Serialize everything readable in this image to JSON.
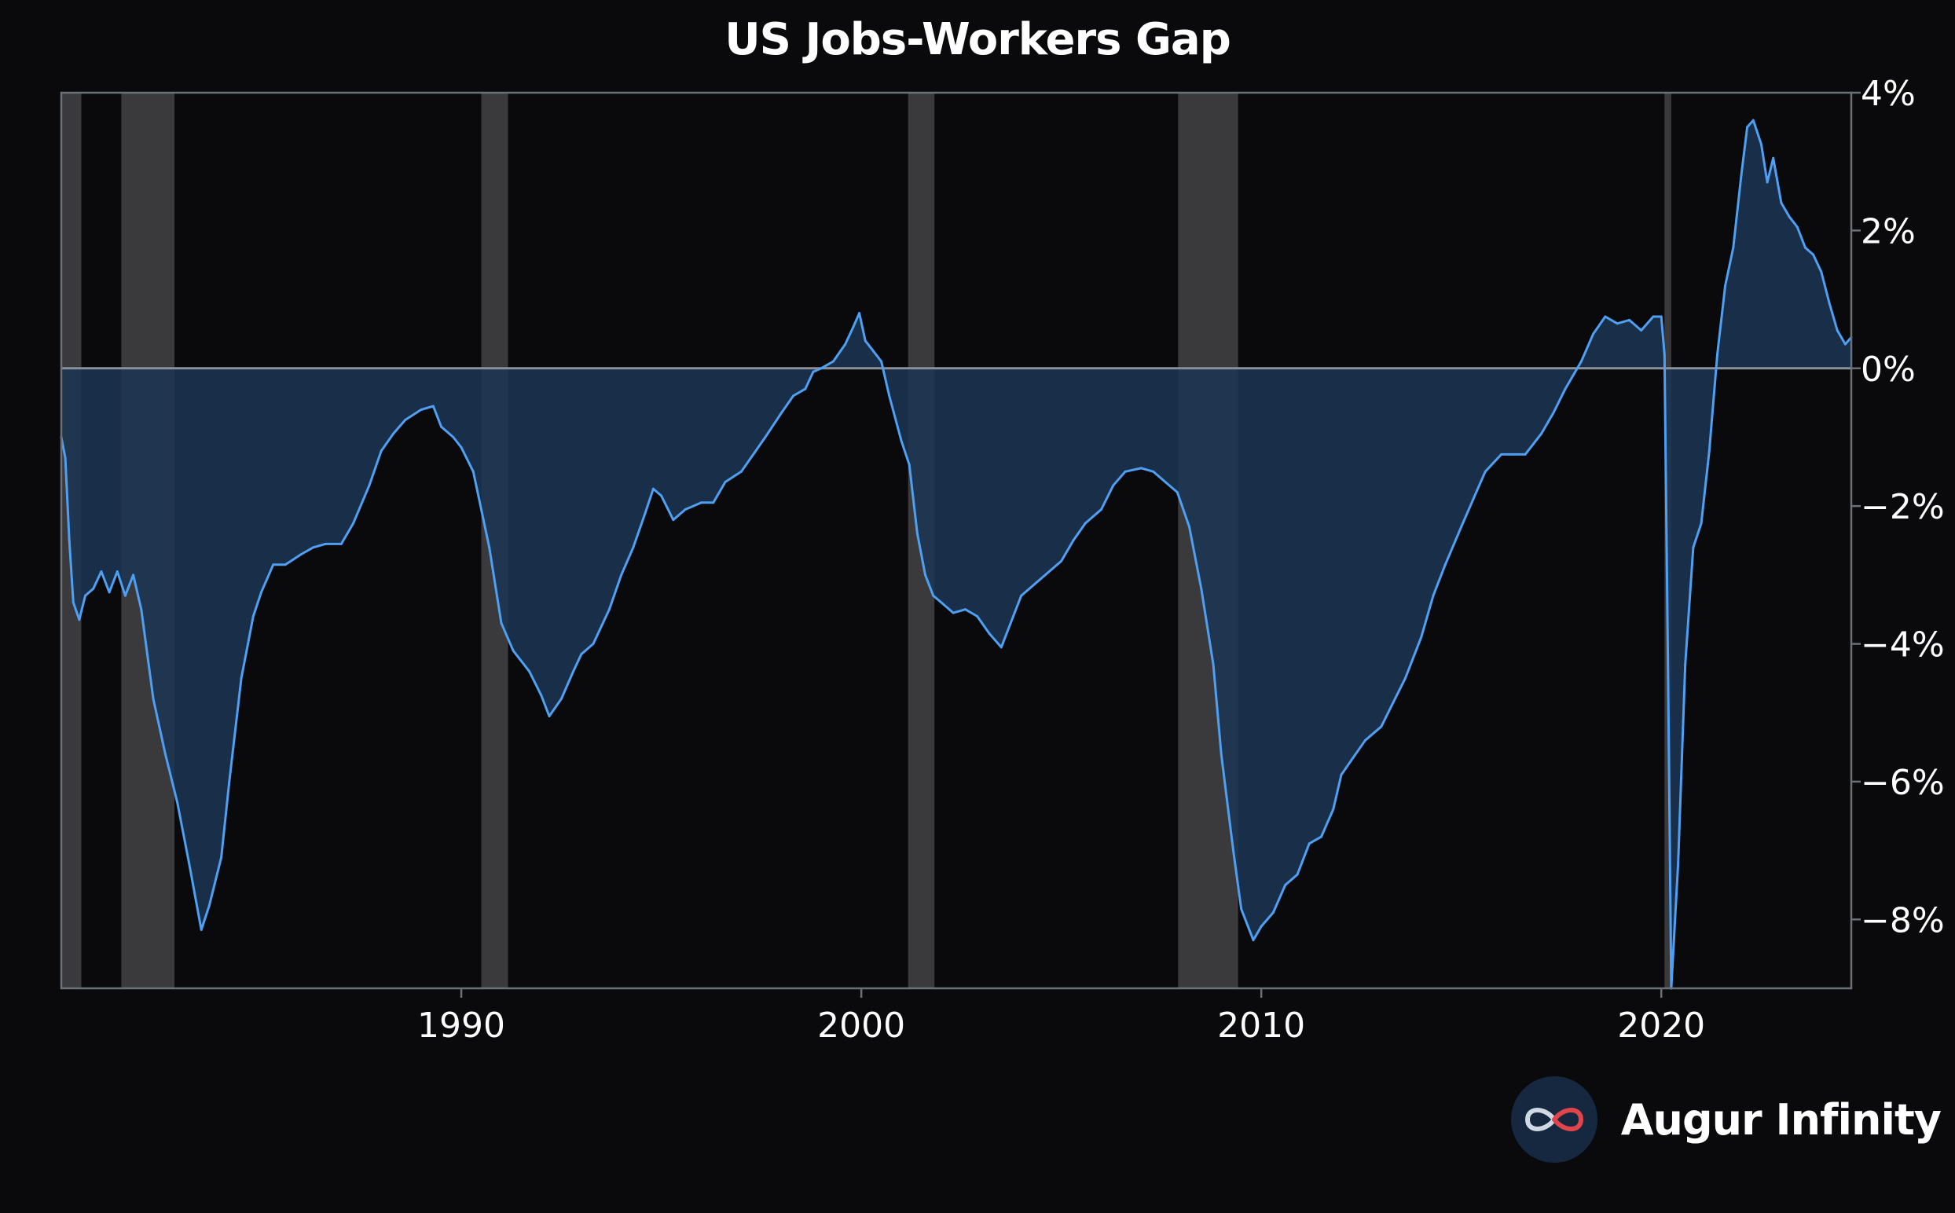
{
  "chart_data": {
    "type": "area",
    "title": "US Jobs-Workers Gap",
    "xlabel": "",
    "ylabel": "",
    "xlim": [
      1980.0,
      2024.75
    ],
    "ylim": [
      -9,
      4
    ],
    "y_ticks": [
      4,
      2,
      0,
      -2,
      -4,
      -6,
      -8
    ],
    "y_tick_labels": [
      "4%",
      "2%",
      "0%",
      "−2%",
      "−4%",
      "−6%",
      "−8%"
    ],
    "x_ticks": [
      1990,
      2000,
      2010,
      2020
    ],
    "x_tick_labels": [
      "1990",
      "2000",
      "2010",
      "2020"
    ],
    "y_axis_side": "right",
    "grid": false,
    "legend": "none",
    "zero_line": true,
    "recessions": [
      [
        1980.0,
        1980.5
      ],
      [
        1981.5,
        1982.83
      ],
      [
        1990.5,
        1991.17
      ],
      [
        2001.17,
        2001.83
      ],
      [
        2007.92,
        2009.42
      ],
      [
        2020.08,
        2020.25
      ]
    ],
    "series": [
      {
        "values": [
          [
            1980.0,
            -1.0
          ],
          [
            1980.1,
            -1.3
          ],
          [
            1980.2,
            -2.5
          ],
          [
            1980.3,
            -3.4
          ],
          [
            1980.45,
            -3.65
          ],
          [
            1980.6,
            -3.3
          ],
          [
            1980.8,
            -3.2
          ],
          [
            1981.0,
            -2.95
          ],
          [
            1981.2,
            -3.25
          ],
          [
            1981.4,
            -2.95
          ],
          [
            1981.6,
            -3.3
          ],
          [
            1981.8,
            -3.0
          ],
          [
            1982.0,
            -3.5
          ],
          [
            1982.3,
            -4.8
          ],
          [
            1982.6,
            -5.6
          ],
          [
            1982.9,
            -6.3
          ],
          [
            1983.2,
            -7.2
          ],
          [
            1983.5,
            -8.15
          ],
          [
            1983.7,
            -7.8
          ],
          [
            1984.0,
            -7.1
          ],
          [
            1984.2,
            -6.0
          ],
          [
            1984.5,
            -4.5
          ],
          [
            1984.8,
            -3.6
          ],
          [
            1985.0,
            -3.25
          ],
          [
            1985.3,
            -2.85
          ],
          [
            1985.6,
            -2.85
          ],
          [
            1986.0,
            -2.7
          ],
          [
            1986.3,
            -2.6
          ],
          [
            1986.6,
            -2.55
          ],
          [
            1987.0,
            -2.55
          ],
          [
            1987.3,
            -2.25
          ],
          [
            1987.7,
            -1.7
          ],
          [
            1988.0,
            -1.2
          ],
          [
            1988.3,
            -0.95
          ],
          [
            1988.6,
            -0.75
          ],
          [
            1989.0,
            -0.6
          ],
          [
            1989.3,
            -0.55
          ],
          [
            1989.5,
            -0.85
          ],
          [
            1989.8,
            -1.0
          ],
          [
            1990.0,
            -1.15
          ],
          [
            1990.3,
            -1.5
          ],
          [
            1990.7,
            -2.6
          ],
          [
            1991.0,
            -3.7
          ],
          [
            1991.3,
            -4.1
          ],
          [
            1991.7,
            -4.4
          ],
          [
            1992.0,
            -4.75
          ],
          [
            1992.2,
            -5.05
          ],
          [
            1992.5,
            -4.8
          ],
          [
            1992.8,
            -4.4
          ],
          [
            1993.0,
            -4.15
          ],
          [
            1993.3,
            -4.0
          ],
          [
            1993.7,
            -3.5
          ],
          [
            1994.0,
            -3.0
          ],
          [
            1994.3,
            -2.6
          ],
          [
            1994.6,
            -2.1
          ],
          [
            1994.8,
            -1.75
          ],
          [
            1995.0,
            -1.85
          ],
          [
            1995.3,
            -2.2
          ],
          [
            1995.6,
            -2.05
          ],
          [
            1996.0,
            -1.95
          ],
          [
            1996.3,
            -1.95
          ],
          [
            1996.6,
            -1.65
          ],
          [
            1997.0,
            -1.5
          ],
          [
            1997.3,
            -1.25
          ],
          [
            1997.6,
            -1.0
          ],
          [
            1998.0,
            -0.65
          ],
          [
            1998.3,
            -0.4
          ],
          [
            1998.6,
            -0.3
          ],
          [
            1998.8,
            -0.05
          ],
          [
            1999.0,
            0.0
          ],
          [
            1999.3,
            0.1
          ],
          [
            1999.6,
            0.35
          ],
          [
            1999.8,
            0.6
          ],
          [
            1999.95,
            0.8
          ],
          [
            2000.1,
            0.4
          ],
          [
            2000.3,
            0.25
          ],
          [
            2000.5,
            0.1
          ],
          [
            2000.7,
            -0.4
          ],
          [
            2001.0,
            -1.05
          ],
          [
            2001.2,
            -1.4
          ],
          [
            2001.4,
            -2.4
          ],
          [
            2001.6,
            -3.0
          ],
          [
            2001.8,
            -3.3
          ],
          [
            2002.0,
            -3.4
          ],
          [
            2002.3,
            -3.55
          ],
          [
            2002.6,
            -3.5
          ],
          [
            2002.9,
            -3.6
          ],
          [
            2003.2,
            -3.85
          ],
          [
            2003.5,
            -4.05
          ],
          [
            2003.8,
            -3.6
          ],
          [
            2004.0,
            -3.3
          ],
          [
            2004.3,
            -3.15
          ],
          [
            2004.6,
            -3.0
          ],
          [
            2005.0,
            -2.8
          ],
          [
            2005.3,
            -2.5
          ],
          [
            2005.6,
            -2.25
          ],
          [
            2006.0,
            -2.05
          ],
          [
            2006.3,
            -1.7
          ],
          [
            2006.6,
            -1.5
          ],
          [
            2007.0,
            -1.45
          ],
          [
            2007.3,
            -1.5
          ],
          [
            2007.6,
            -1.65
          ],
          [
            2007.9,
            -1.8
          ],
          [
            2008.2,
            -2.3
          ],
          [
            2008.5,
            -3.2
          ],
          [
            2008.8,
            -4.3
          ],
          [
            2009.0,
            -5.6
          ],
          [
            2009.3,
            -7.0
          ],
          [
            2009.5,
            -7.85
          ],
          [
            2009.8,
            -8.3
          ],
          [
            2010.0,
            -8.1
          ],
          [
            2010.3,
            -7.9
          ],
          [
            2010.6,
            -7.5
          ],
          [
            2010.9,
            -7.35
          ],
          [
            2011.2,
            -6.9
          ],
          [
            2011.5,
            -6.8
          ],
          [
            2011.8,
            -6.4
          ],
          [
            2012.0,
            -5.9
          ],
          [
            2012.3,
            -5.65
          ],
          [
            2012.6,
            -5.4
          ],
          [
            2013.0,
            -5.2
          ],
          [
            2013.3,
            -4.85
          ],
          [
            2013.6,
            -4.5
          ],
          [
            2014.0,
            -3.9
          ],
          [
            2014.3,
            -3.3
          ],
          [
            2014.6,
            -2.85
          ],
          [
            2015.0,
            -2.3
          ],
          [
            2015.3,
            -1.9
          ],
          [
            2015.6,
            -1.5
          ],
          [
            2016.0,
            -1.25
          ],
          [
            2016.3,
            -1.25
          ],
          [
            2016.6,
            -1.25
          ],
          [
            2017.0,
            -0.95
          ],
          [
            2017.3,
            -0.65
          ],
          [
            2017.6,
            -0.3
          ],
          [
            2018.0,
            0.1
          ],
          [
            2018.3,
            0.5
          ],
          [
            2018.6,
            0.75
          ],
          [
            2018.9,
            0.65
          ],
          [
            2019.2,
            0.7
          ],
          [
            2019.5,
            0.55
          ],
          [
            2019.8,
            0.75
          ],
          [
            2020.0,
            0.75
          ],
          [
            2020.08,
            0.2
          ],
          [
            2020.17,
            -4.5
          ],
          [
            2020.25,
            -9.5
          ],
          [
            2020.42,
            -7.2
          ],
          [
            2020.6,
            -4.3
          ],
          [
            2020.8,
            -2.6
          ],
          [
            2021.0,
            -2.25
          ],
          [
            2021.2,
            -1.2
          ],
          [
            2021.4,
            0.2
          ],
          [
            2021.6,
            1.2
          ],
          [
            2021.8,
            1.75
          ],
          [
            2022.0,
            2.8
          ],
          [
            2022.15,
            3.5
          ],
          [
            2022.3,
            3.6
          ],
          [
            2022.5,
            3.25
          ],
          [
            2022.65,
            2.7
          ],
          [
            2022.8,
            3.05
          ],
          [
            2023.0,
            2.4
          ],
          [
            2023.2,
            2.2
          ],
          [
            2023.4,
            2.05
          ],
          [
            2023.6,
            1.75
          ],
          [
            2023.8,
            1.65
          ],
          [
            2024.0,
            1.4
          ],
          [
            2024.2,
            0.95
          ],
          [
            2024.4,
            0.55
          ],
          [
            2024.6,
            0.35
          ],
          [
            2024.75,
            0.45
          ]
        ]
      }
    ]
  },
  "colors": {
    "line": "#4f9ff2",
    "fill": "#1c3553",
    "recession": "#3a3a3c",
    "zero_line": "#8a9099",
    "axis": "#6b7078",
    "background": "#0a0a0c"
  },
  "brand": {
    "name": "Augur Infinity",
    "logo_icon": "infinity-logo-icon"
  }
}
